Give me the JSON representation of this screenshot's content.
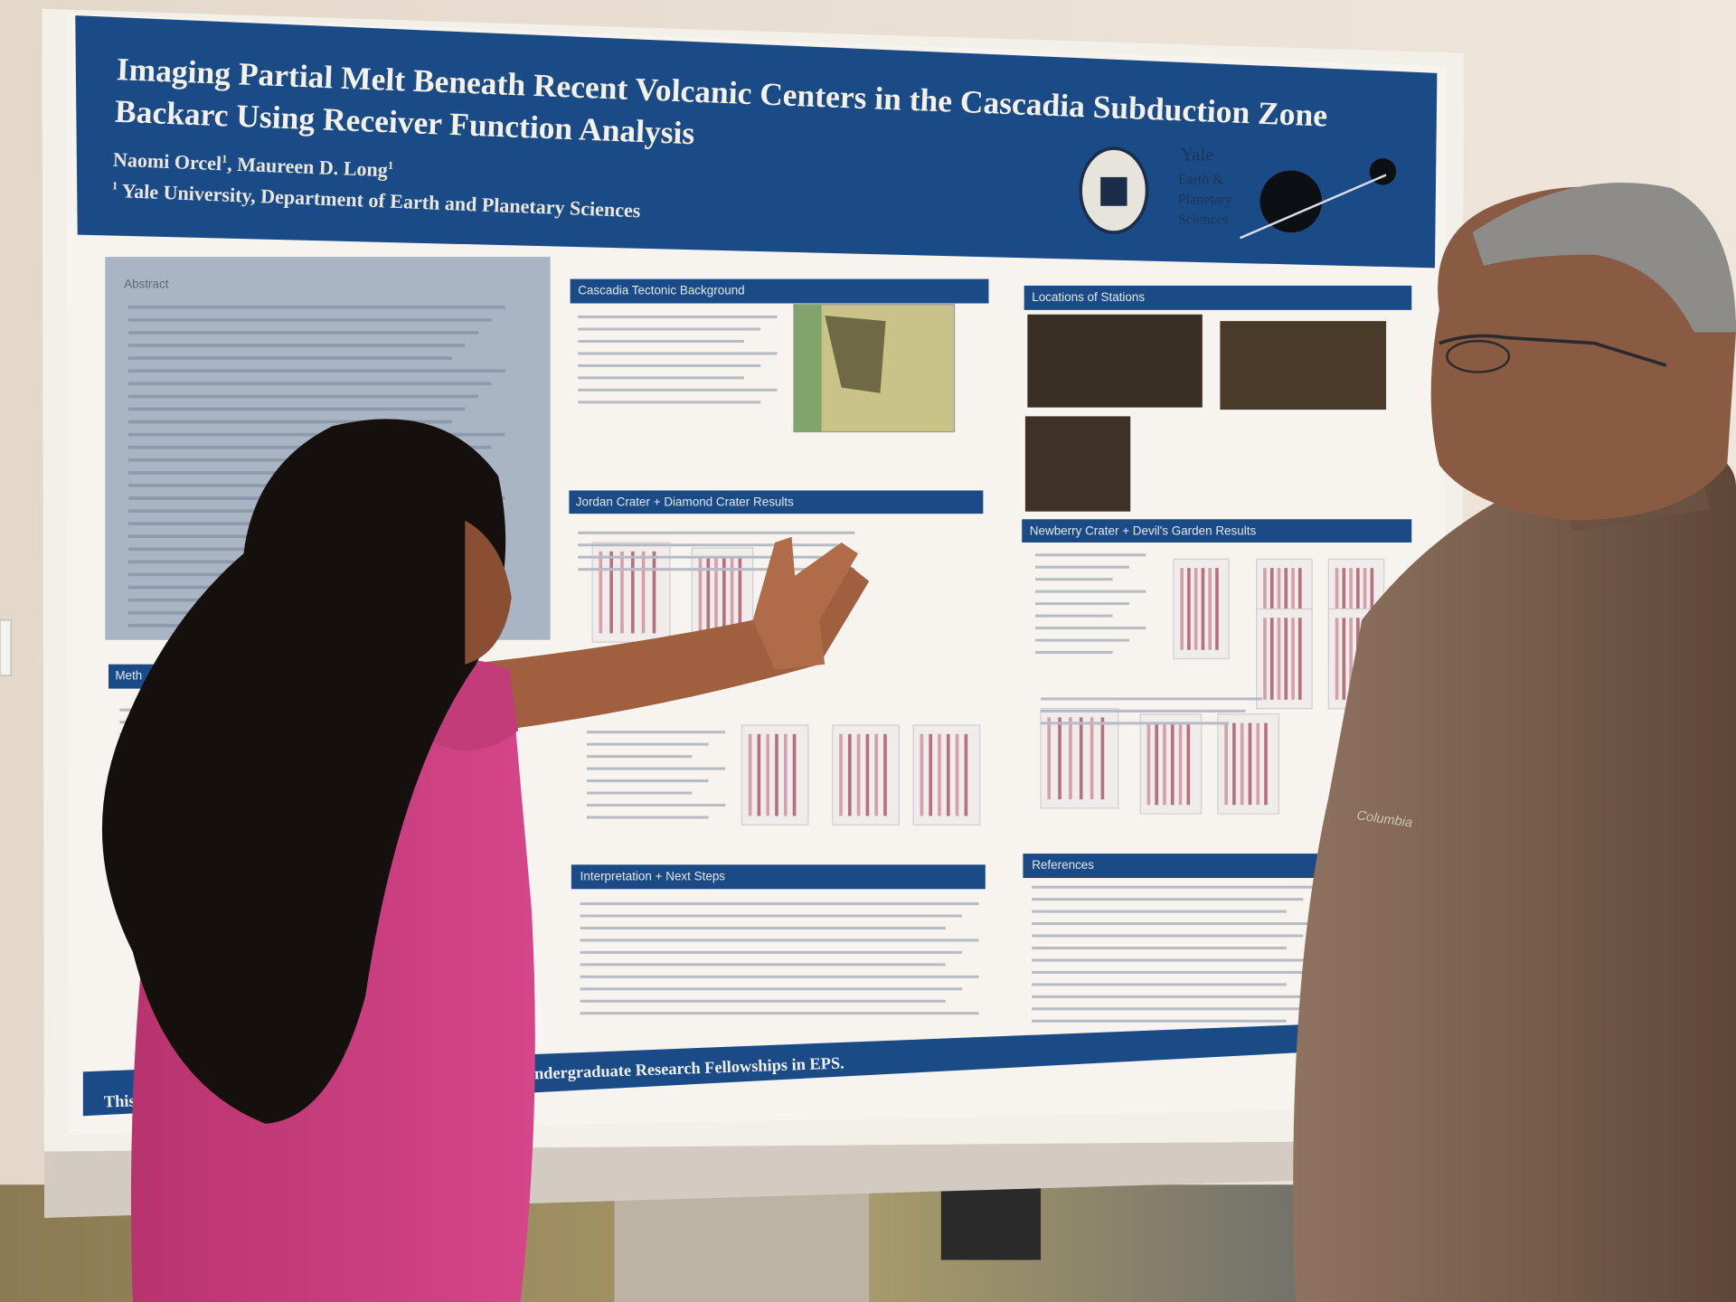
{
  "header": {
    "title_lines": [
      "Imaging Partial Melt Beneath Recent Volcanic Centers in the Cascadia Subduction Zone",
      "Backarc Using Receiver Function Analysis"
    ],
    "authors": [
      {
        "name": "Naomi Orcel",
        "mark": "1"
      },
      {
        "name": "Maureen D. Long",
        "mark": "1"
      }
    ],
    "affiliation": {
      "mark": "1",
      "text": "Yale University, Department of Earth and Planetary Sciences"
    },
    "logo": [
      "Yale",
      "Earth &",
      "Planetary",
      "Sciences"
    ]
  },
  "sections": {
    "abstract": "Abstract",
    "background": "Cascadia Tectonic Background",
    "stations": "Locations of Stations",
    "jordan": "Jordan Crater + Diamond Crater Results",
    "newberry": "Newberry Crater + Devil's Garden Results",
    "interpretation": "Interpretation + Next Steps",
    "references": "References",
    "methods": "Meth"
  },
  "footer": {
    "left": "This p",
    "right": "Undergraduate Research Fellowships in EPS."
  },
  "jacket_logo": "Columbia"
}
